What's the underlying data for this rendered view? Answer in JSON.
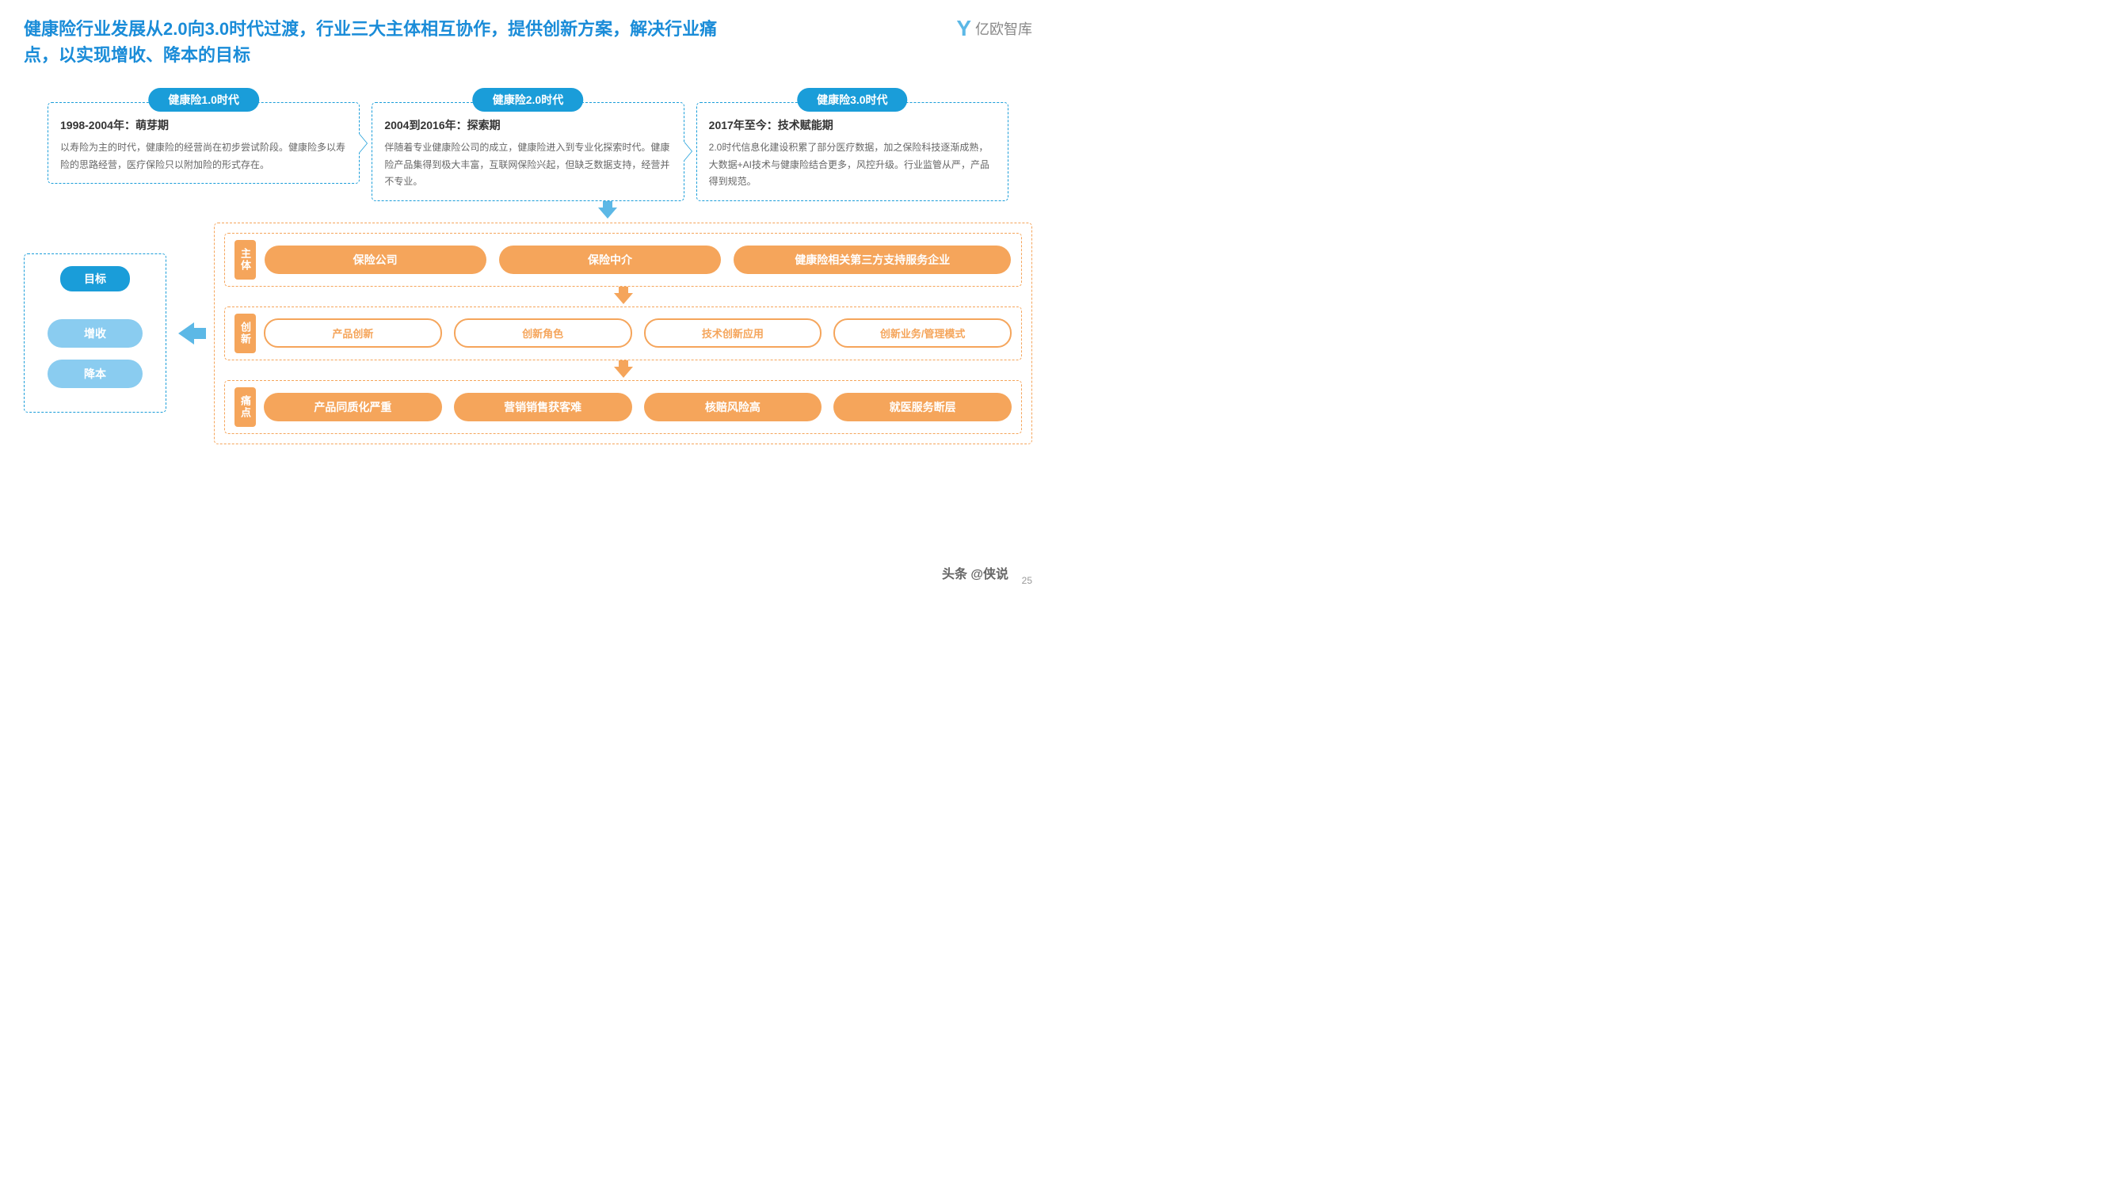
{
  "title": "健康险行业发展从2.0向3.0时代过渡，行业三大主体相互协作，提供创新方案，解决行业痛点，以实现增收、降本的目标",
  "logo_text": "亿欧智库",
  "page_number": "25",
  "watermark": "头条 @侠说",
  "colors": {
    "primary_blue": "#1a9dd9",
    "light_blue": "#8accf0",
    "arrow_blue": "#5cb8e6",
    "orange": "#f5a55b",
    "title_blue": "#1a8cd8"
  },
  "eras": [
    {
      "badge": "健康险1.0时代",
      "subtitle": "1998-2004年：萌芽期",
      "desc": "以寿险为主的时代，健康险的经营尚在初步尝试阶段。健康险多以寿险的思路经营，医疗保险只以附加险的形式存在。"
    },
    {
      "badge": "健康险2.0时代",
      "subtitle": "2004到2016年：探索期",
      "desc": "伴随着专业健康险公司的成立，健康险进入到专业化探索时代。健康险产品集得到极大丰富，互联网保险兴起，但缺乏数据支持，经营并不专业。"
    },
    {
      "badge": "健康险3.0时代",
      "subtitle": "2017年至今：技术赋能期",
      "desc": "2.0时代信息化建设积累了部分医疗数据，加之保险科技逐渐成熟，大数据+AI技术与健康险结合更多，风控升级。行业监管从严，产品得到规范。"
    }
  ],
  "goals": {
    "title": "目标",
    "items": [
      "增收",
      "降本"
    ]
  },
  "sections": [
    {
      "label": "主体",
      "style": "orange",
      "items": [
        "保险公司",
        "保险中介",
        "健康险相关第三方支持服务企业"
      ]
    },
    {
      "label": "创新",
      "style": "outline",
      "items": [
        "产品创新",
        "创新角色",
        "技术创新应用",
        "创新业务/管理模式"
      ]
    },
    {
      "label": "痛点",
      "style": "orange",
      "items": [
        "产品同质化严重",
        "营销销售获客难",
        "核赔风险高",
        "就医服务断层"
      ]
    }
  ]
}
